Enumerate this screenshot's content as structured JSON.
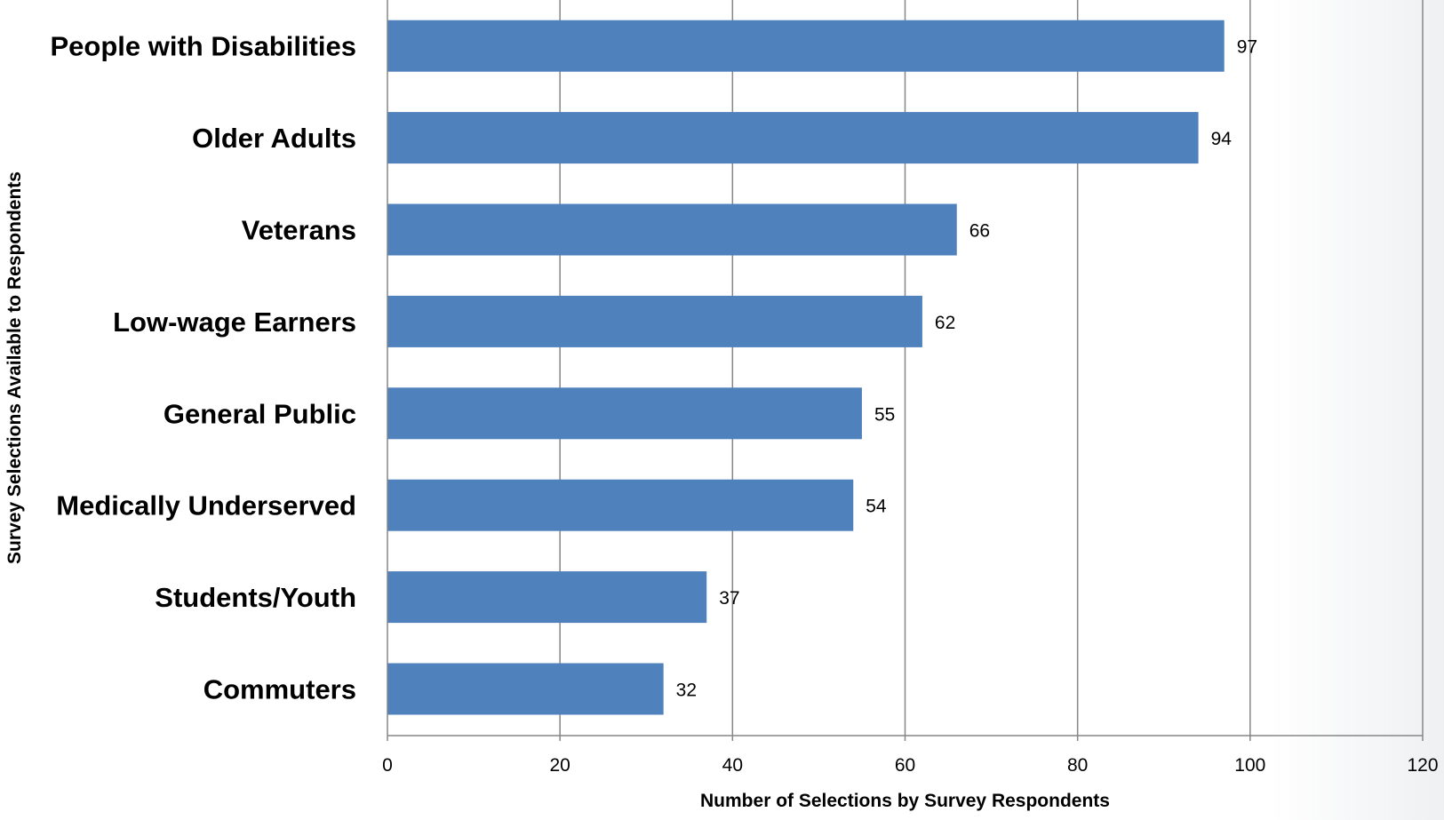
{
  "chart_data": {
    "type": "bar",
    "orientation": "horizontal",
    "title": "",
    "xlabel": "Number of Selections by Survey Respondents",
    "ylabel": "Survey Selections Available to Respondents",
    "categories": [
      "People with Disabilities",
      "Older Adults",
      "Veterans",
      "Low-wage Earners",
      "General Public",
      "Medically Underserved",
      "Students/Youth",
      "Commuters"
    ],
    "values": [
      97,
      94,
      66,
      62,
      55,
      54,
      37,
      32
    ],
    "xlim": [
      0,
      120
    ],
    "xticks": [
      0,
      20,
      40,
      60,
      80,
      100,
      120
    ],
    "grid": "vertical",
    "legend": "none",
    "bar_color": "#4f81bd",
    "grid_color": "#868686",
    "data_labels": true
  }
}
